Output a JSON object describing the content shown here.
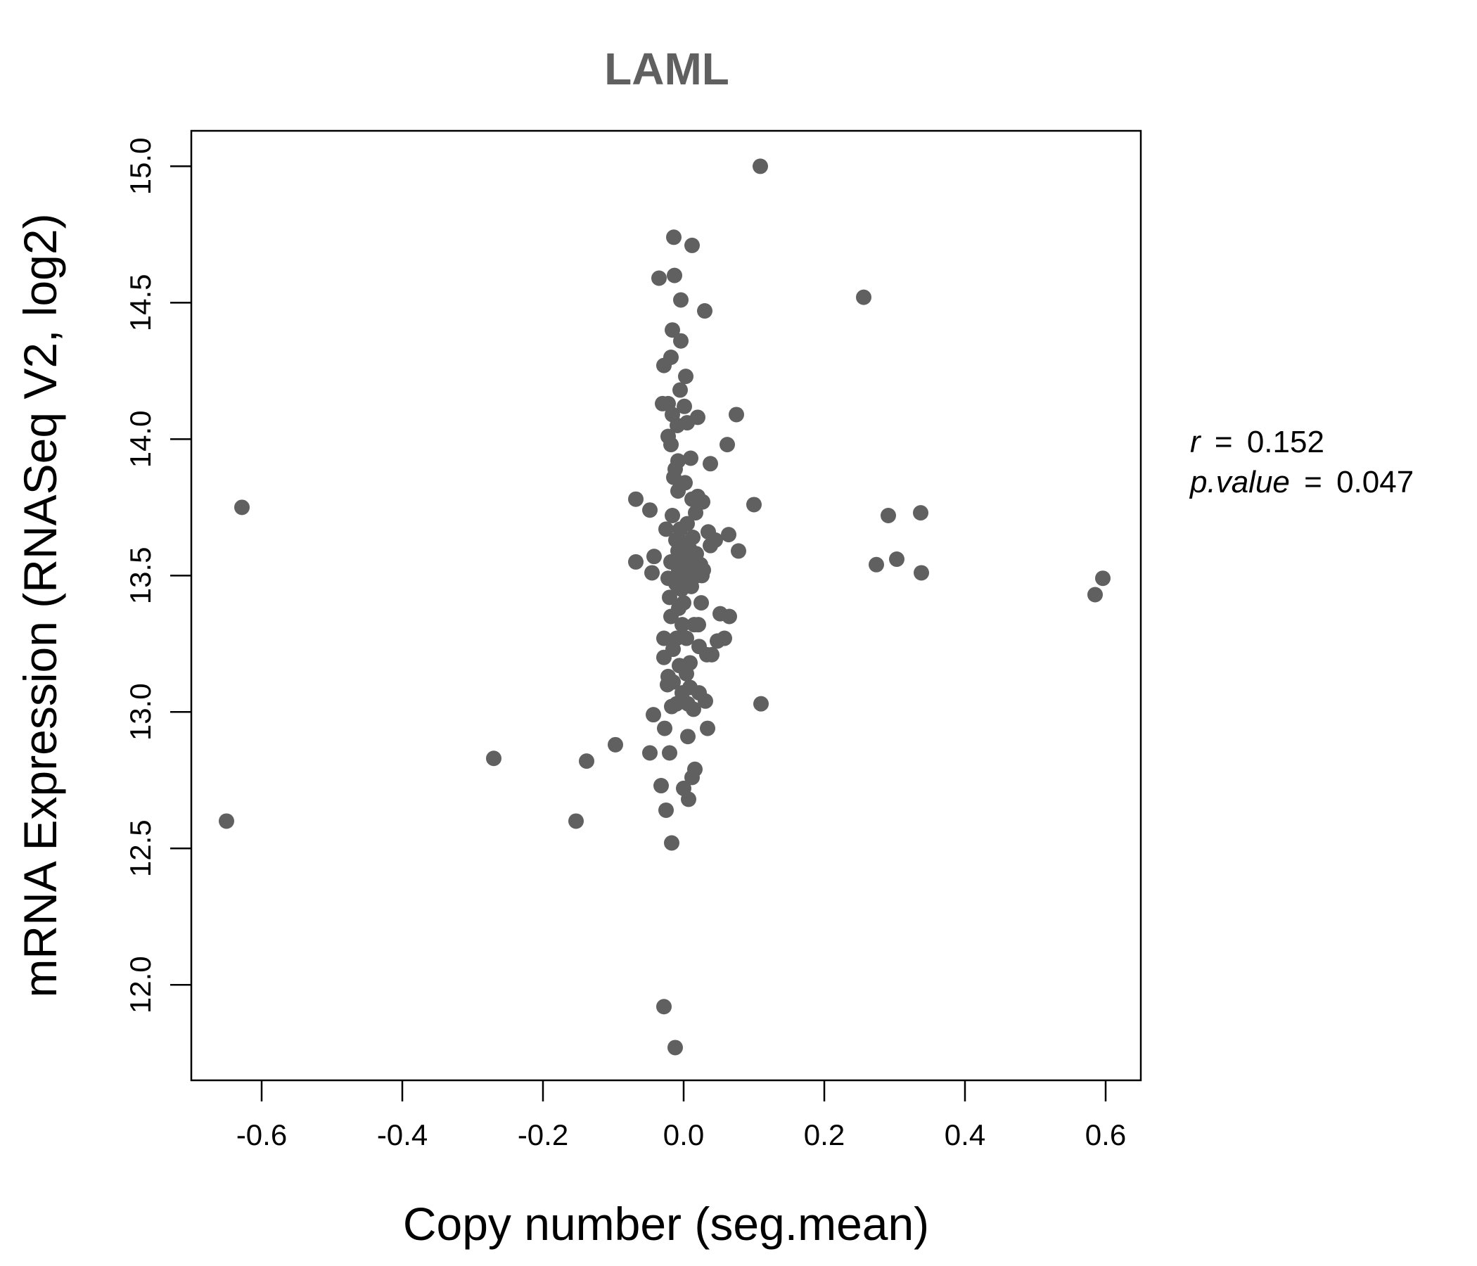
{
  "chart_data": {
    "type": "scatter",
    "title": "LAML",
    "xlabel": "Copy number (seg.mean)",
    "ylabel": "mRNA Expression (RNASeq V2, log2)",
    "xlim": [
      -0.7,
      0.65
    ],
    "ylim": [
      11.65,
      15.13
    ],
    "xticks": [
      -0.6,
      -0.4,
      -0.2,
      0.0,
      0.2,
      0.4,
      0.6
    ],
    "xtick_labels": [
      "-0.6",
      "-0.4",
      "-0.2",
      "0.0",
      "0.2",
      "0.4",
      "0.6"
    ],
    "yticks": [
      12.0,
      12.5,
      13.0,
      13.5,
      14.0,
      14.5,
      15.0
    ],
    "ytick_labels": [
      "12.0",
      "12.5",
      "13.0",
      "13.5",
      "14.0",
      "14.5",
      "15.0"
    ],
    "point_color": "#606060",
    "annotation": {
      "r_label": "r",
      "r_value": "0.152",
      "p_label": "p.value",
      "p_value": "0.047",
      "equals": "="
    },
    "points": [
      [
        -0.65,
        12.6
      ],
      [
        -0.628,
        13.75
      ],
      [
        -0.27,
        12.83
      ],
      [
        -0.153,
        12.6
      ],
      [
        -0.138,
        12.82
      ],
      [
        -0.097,
        12.88
      ],
      [
        -0.068,
        13.78
      ],
      [
        -0.068,
        13.55
      ],
      [
        -0.048,
        13.74
      ],
      [
        -0.048,
        12.85
      ],
      [
        -0.045,
        13.51
      ],
      [
        -0.042,
        13.57
      ],
      [
        -0.043,
        12.99
      ],
      [
        -0.035,
        14.59
      ],
      [
        -0.032,
        12.73
      ],
      [
        -0.03,
        14.13
      ],
      [
        -0.028,
        14.27
      ],
      [
        -0.028,
        13.27
      ],
      [
        -0.028,
        13.2
      ],
      [
        -0.027,
        12.94
      ],
      [
        -0.028,
        11.92
      ],
      [
        -0.025,
        13.67
      ],
      [
        -0.025,
        12.64
      ],
      [
        -0.023,
        13.1
      ],
      [
        -0.022,
        14.13
      ],
      [
        -0.022,
        14.01
      ],
      [
        -0.022,
        13.49
      ],
      [
        -0.022,
        13.13
      ],
      [
        -0.02,
        13.42
      ],
      [
        -0.02,
        12.85
      ],
      [
        -0.018,
        14.3
      ],
      [
        -0.018,
        13.98
      ],
      [
        -0.018,
        13.55
      ],
      [
        -0.018,
        13.35
      ],
      [
        -0.017,
        13.02
      ],
      [
        -0.017,
        12.52
      ],
      [
        -0.016,
        14.4
      ],
      [
        -0.016,
        14.09
      ],
      [
        -0.016,
        13.72
      ],
      [
        -0.015,
        13.23
      ],
      [
        -0.015,
        13.11
      ],
      [
        -0.014,
        13.86
      ],
      [
        -0.014,
        14.74
      ],
      [
        -0.013,
        14.6
      ],
      [
        -0.012,
        13.89
      ],
      [
        -0.012,
        11.77
      ],
      [
        -0.011,
        13.63
      ],
      [
        -0.011,
        13.47
      ],
      [
        -0.01,
        13.27
      ],
      [
        -0.01,
        13.03
      ],
      [
        -0.009,
        14.05
      ],
      [
        -0.008,
        13.92
      ],
      [
        -0.008,
        13.81
      ],
      [
        -0.008,
        13.59
      ],
      [
        -0.007,
        13.52
      ],
      [
        -0.007,
        13.38
      ],
      [
        -0.006,
        13.17
      ],
      [
        -0.005,
        14.18
      ],
      [
        -0.005,
        13.67
      ],
      [
        -0.004,
        14.51
      ],
      [
        -0.004,
        14.36
      ],
      [
        -0.003,
        13.56
      ],
      [
        -0.003,
        13.45
      ],
      [
        -0.002,
        13.32
      ],
      [
        -0.002,
        13.07
      ],
      [
        0.0,
        13.4
      ],
      [
        0.0,
        12.72
      ],
      [
        0.001,
        14.12
      ],
      [
        0.002,
        13.84
      ],
      [
        0.002,
        13.54
      ],
      [
        0.003,
        14.23
      ],
      [
        0.003,
        13.62
      ],
      [
        0.004,
        13.48
      ],
      [
        0.004,
        13.27
      ],
      [
        0.004,
        13.14
      ],
      [
        0.005,
        14.06
      ],
      [
        0.005,
        13.69
      ],
      [
        0.006,
        13.57
      ],
      [
        0.006,
        13.03
      ],
      [
        0.006,
        12.91
      ],
      [
        0.007,
        12.68
      ],
      [
        0.008,
        13.6
      ],
      [
        0.008,
        13.5
      ],
      [
        0.009,
        13.18
      ],
      [
        0.009,
        13.09
      ],
      [
        0.01,
        13.93
      ],
      [
        0.01,
        13.55
      ],
      [
        0.011,
        13.46
      ],
      [
        0.012,
        14.71
      ],
      [
        0.012,
        13.78
      ],
      [
        0.012,
        12.76
      ],
      [
        0.013,
        13.64
      ],
      [
        0.014,
        13.52
      ],
      [
        0.014,
        13.01
      ],
      [
        0.015,
        13.32
      ],
      [
        0.016,
        12.79
      ],
      [
        0.017,
        13.73
      ],
      [
        0.018,
        13.58
      ],
      [
        0.019,
        13.5
      ],
      [
        0.02,
        14.08
      ],
      [
        0.02,
        13.79
      ],
      [
        0.021,
        13.32
      ],
      [
        0.022,
        13.24
      ],
      [
        0.022,
        13.07
      ],
      [
        0.024,
        13.54
      ],
      [
        0.025,
        13.4
      ],
      [
        0.026,
        13.5
      ],
      [
        0.027,
        13.77
      ],
      [
        0.028,
        13.52
      ],
      [
        0.03,
        14.47
      ],
      [
        0.031,
        13.04
      ],
      [
        0.033,
        13.21
      ],
      [
        0.034,
        12.94
      ],
      [
        0.035,
        13.66
      ],
      [
        0.038,
        13.61
      ],
      [
        0.038,
        13.91
      ],
      [
        0.04,
        13.21
      ],
      [
        0.045,
        13.63
      ],
      [
        0.048,
        13.26
      ],
      [
        0.052,
        13.36
      ],
      [
        0.058,
        13.27
      ],
      [
        0.062,
        13.98
      ],
      [
        0.064,
        13.65
      ],
      [
        0.065,
        13.35
      ],
      [
        0.075,
        14.09
      ],
      [
        0.078,
        13.59
      ],
      [
        0.1,
        13.76
      ],
      [
        0.109,
        15.0
      ],
      [
        0.11,
        13.03
      ],
      [
        0.256,
        14.52
      ],
      [
        0.274,
        13.54
      ],
      [
        0.291,
        13.72
      ],
      [
        0.303,
        13.56
      ],
      [
        0.337,
        13.73
      ],
      [
        0.338,
        13.51
      ],
      [
        0.585,
        13.43
      ],
      [
        0.596,
        13.49
      ]
    ]
  }
}
